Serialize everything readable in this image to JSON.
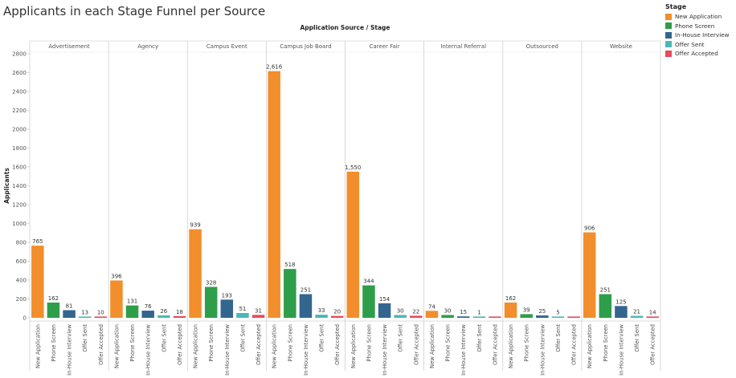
{
  "title": "Applicants in each Stage Funnel per Source",
  "chart_data": {
    "type": "bar",
    "title": "Applicants in each Stage Funnel per Source",
    "column_header": "Application Source / Stage",
    "ylabel": "Applicants",
    "ylim": [
      0,
      2800
    ],
    "yticks": [
      0,
      200,
      400,
      600,
      800,
      1000,
      1200,
      1400,
      1600,
      1800,
      2000,
      2200,
      2400,
      2600,
      2800
    ],
    "grid": false,
    "legend_position": "top-right",
    "legend_title": "Stage",
    "stages": [
      "New Application",
      "Phone Screen",
      "In-House Interview",
      "Offer Sent",
      "Offer Accepted"
    ],
    "stage_colors": [
      "#F28E2B",
      "#2E9E4A",
      "#33668F",
      "#4CB8B5",
      "#E84A5F"
    ],
    "groups": [
      {
        "name": "Advertisement",
        "values": [
          765,
          162,
          81,
          13,
          10
        ],
        "labels": [
          "765",
          "162",
          "81",
          "13",
          "10"
        ]
      },
      {
        "name": "Agency",
        "values": [
          396,
          131,
          76,
          26,
          18
        ],
        "labels": [
          "396",
          "131",
          "76",
          "26",
          "18"
        ]
      },
      {
        "name": "Campus Event",
        "values": [
          939,
          328,
          193,
          51,
          31
        ],
        "labels": [
          "939",
          "328",
          "193",
          "51",
          "31"
        ]
      },
      {
        "name": "Campus Job Board",
        "values": [
          2616,
          518,
          251,
          33,
          20
        ],
        "labels": [
          "2,616",
          "518",
          "251",
          "33",
          "20"
        ]
      },
      {
        "name": "Career Fair",
        "values": [
          1550,
          344,
          154,
          30,
          22
        ],
        "labels": [
          "1,550",
          "344",
          "154",
          "30",
          "22"
        ]
      },
      {
        "name": "Internal Referral",
        "values": [
          74,
          30,
          15,
          1,
          null
        ],
        "labels": [
          "74",
          "30",
          "15",
          "1",
          ""
        ]
      },
      {
        "name": "Outsourced",
        "values": [
          162,
          39,
          25,
          5,
          null
        ],
        "labels": [
          "162",
          "39",
          "25",
          "5",
          ""
        ]
      },
      {
        "name": "Website",
        "values": [
          906,
          251,
          125,
          21,
          14
        ],
        "labels": [
          "906",
          "251",
          "125",
          "21",
          "14"
        ]
      }
    ]
  }
}
